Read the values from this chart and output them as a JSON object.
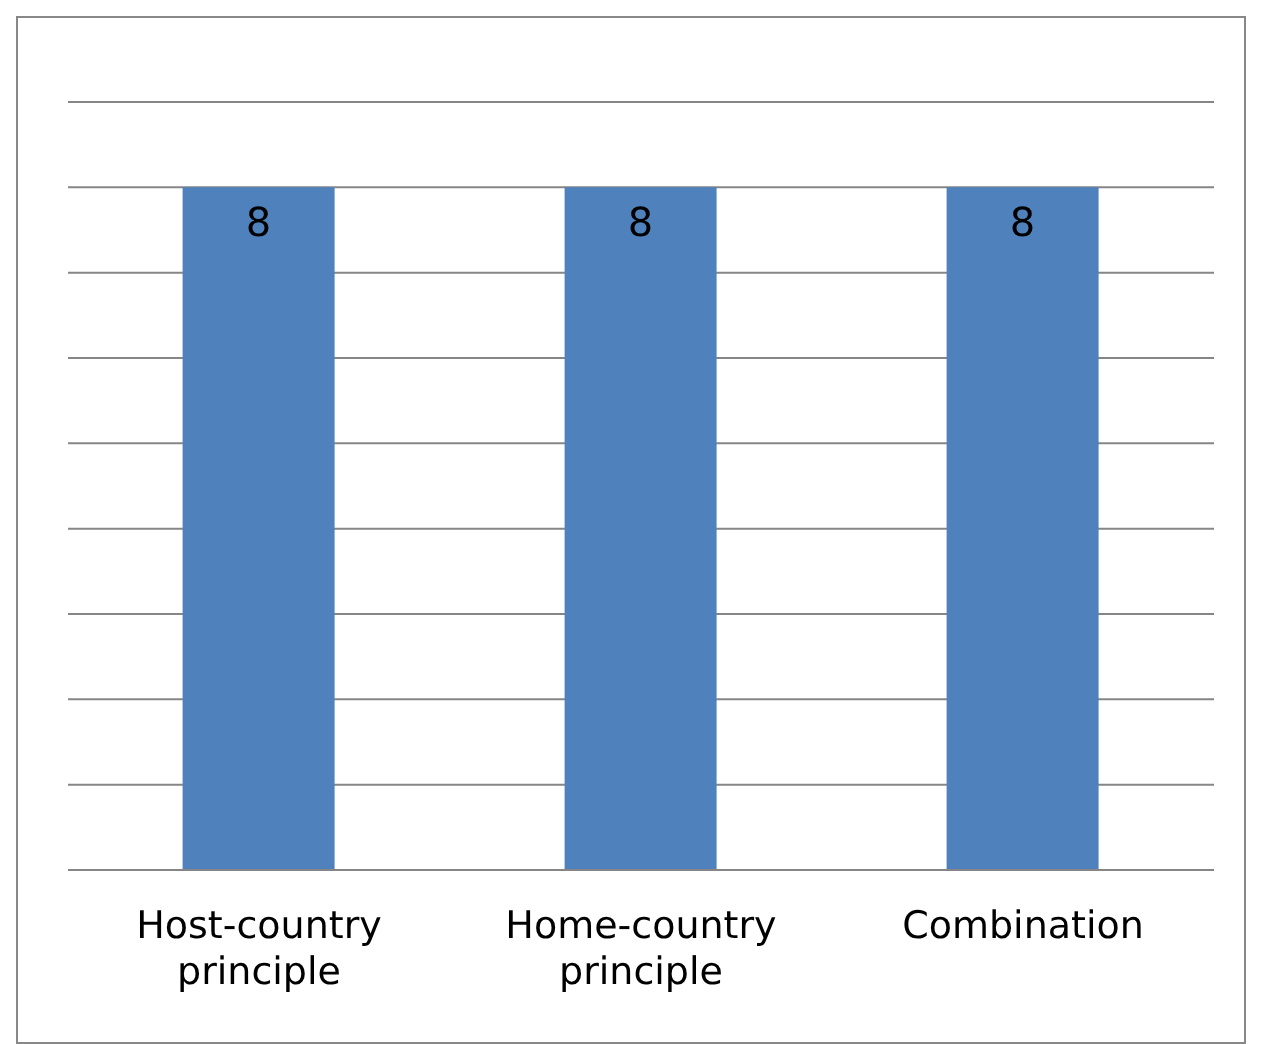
{
  "chart_data": {
    "type": "bar",
    "categories": [
      "Host-country principle",
      "Home-country principle",
      "Combination"
    ],
    "values": [
      8,
      8,
      8
    ],
    "color": "#4f81bd",
    "ylim": [
      0,
      9
    ],
    "yticks": [
      {
        "value": 0,
        "label": null
      },
      {
        "value": 1,
        "label": null
      },
      {
        "value": 2,
        "label": null
      },
      {
        "value": 3,
        "label": null
      },
      {
        "value": 4,
        "label": null
      },
      {
        "value": 5,
        "label": null
      },
      {
        "value": 6,
        "label": null
      },
      {
        "value": 7,
        "label": null
      },
      {
        "value": 8,
        "label": null
      },
      {
        "value": 9,
        "label": null
      }
    ],
    "grid": "y",
    "tick_labels": "x",
    "data_labels": true,
    "legend": false
  }
}
